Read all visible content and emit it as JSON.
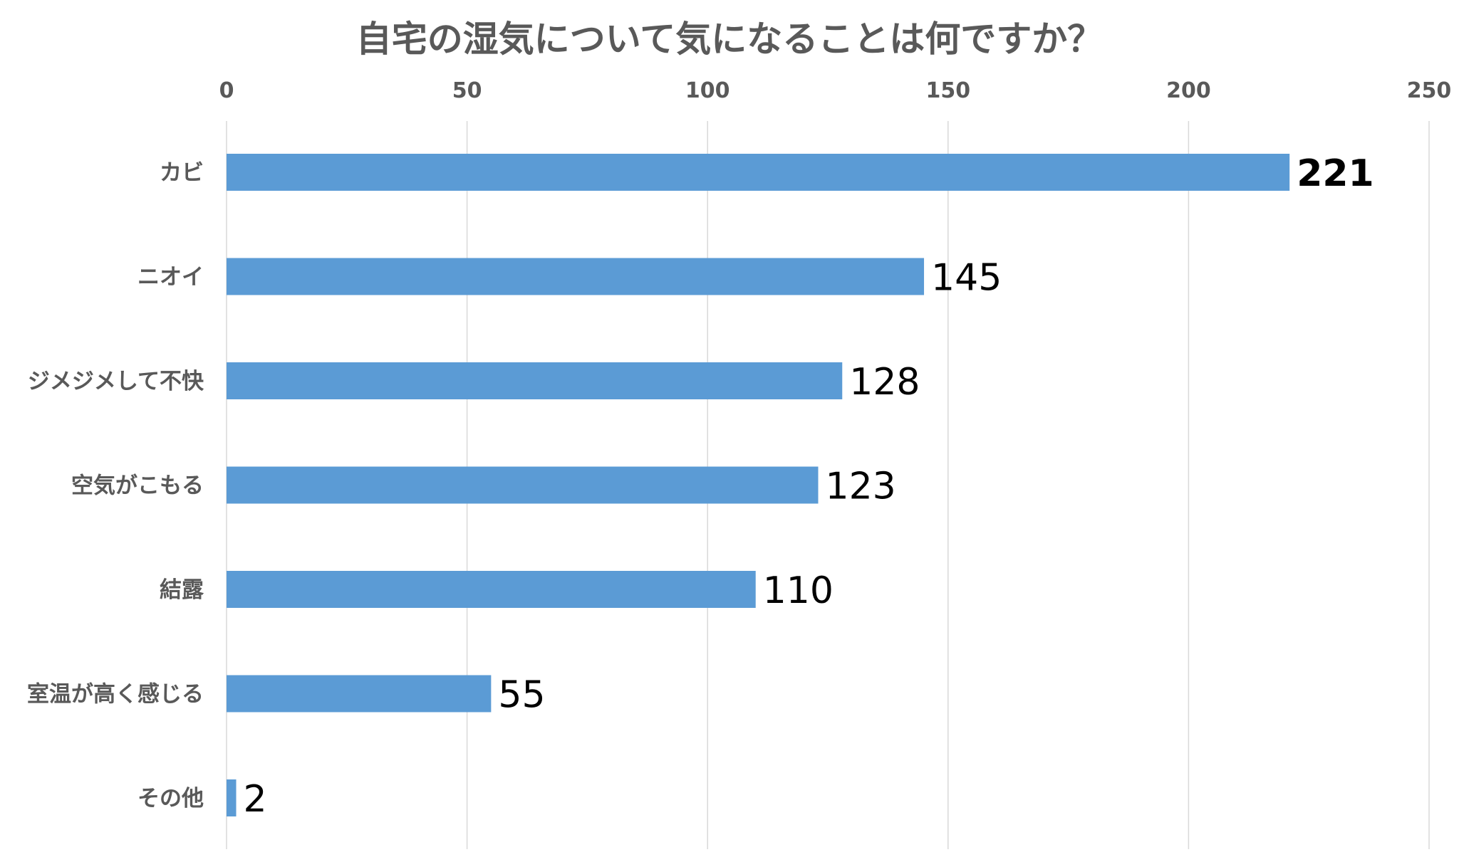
{
  "chart_data": {
    "type": "bar",
    "orientation": "horizontal",
    "title": "自宅の湿気について気になることは何ですか？",
    "categories": [
      "カビ",
      "ニオイ",
      "ジメジメして不快",
      "空気がこもる",
      "結露",
      "室温が高く感じる",
      "その他"
    ],
    "values": [
      221,
      145,
      128,
      123,
      110,
      55,
      2
    ],
    "xlim": [
      0,
      250
    ],
    "xticks": [
      0,
      50,
      100,
      150,
      200,
      250
    ],
    "x_axis_position": "top",
    "grid": true,
    "data_labels": true,
    "bar_color": "#5B9BD5",
    "gridline_color": "#D9D9D9",
    "text_color": "#595959"
  }
}
